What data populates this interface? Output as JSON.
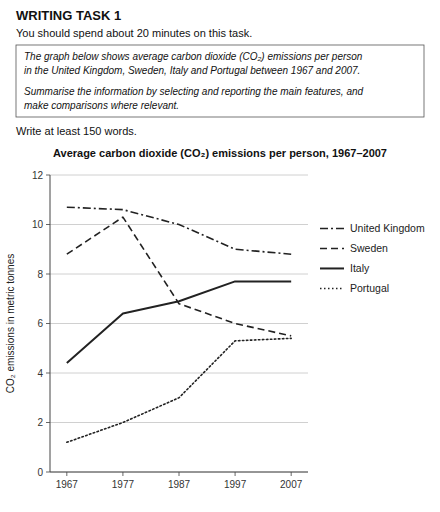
{
  "heading": "WRITING TASK 1",
  "subheading": "You should spend about 20 minutes on this task.",
  "prompt": [
    [
      "The graph below shows average carbon dioxide (CO₂) emissions per person",
      "in the United Kingdom, Sweden, Italy and Portugal between 1967 and 2007."
    ],
    [
      "Summarise the information by selecting and reporting the main features, and",
      "make comparisons where relevant."
    ]
  ],
  "instruction": "Write at least 150 words.",
  "chart_data": {
    "type": "line",
    "title": "Average carbon dioxide (CO₂) emissions per person, 1967–2007",
    "ylabel": "CO₂ emissions in metric tonnes",
    "x": [
      1967,
      1977,
      1987,
      1997,
      2007
    ],
    "series": [
      {
        "name": "United Kingdom",
        "color": "#222222",
        "line_style": "dashdot",
        "values": [
          10.7,
          10.6,
          10.0,
          9.0,
          8.8
        ]
      },
      {
        "name": "Sweden",
        "color": "#222222",
        "line_style": "dashed",
        "values": [
          8.8,
          10.3,
          6.8,
          6.0,
          5.5
        ]
      },
      {
        "name": "Italy",
        "color": "#222222",
        "line_style": "solid",
        "values": [
          4.4,
          6.4,
          6.9,
          7.7,
          7.7
        ]
      },
      {
        "name": "Portugal",
        "color": "#222222",
        "line_style": "dotted",
        "values": [
          1.2,
          2.0,
          3.0,
          5.3,
          5.4
        ]
      }
    ],
    "xlim": [
      1964,
      2010
    ],
    "xticks": [
      1967,
      1977,
      1987,
      1997,
      2007
    ],
    "ylim": [
      0,
      12
    ],
    "yticks": [
      0,
      2,
      4,
      6,
      8,
      10,
      12
    ],
    "grid": true,
    "legend": "right"
  }
}
